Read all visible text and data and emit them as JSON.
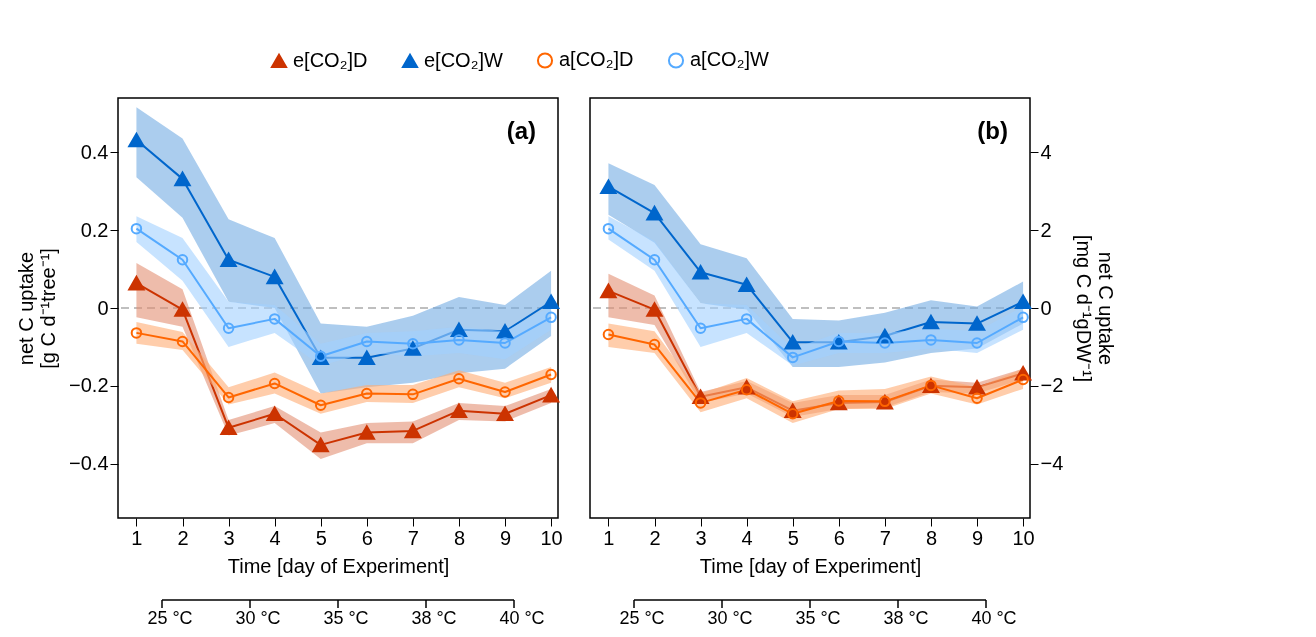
{
  "chart_data": [
    {
      "type": "line",
      "xlabel": "Time [day of Experiment]",
      "ylabel": "net C uptake\n[g C d⁻¹tree⁻¹]",
      "annotations": [
        "(a)",
        "25 °C",
        "30 °C",
        "35 °C",
        "38 °C",
        "40 °C"
      ],
      "legend": "top",
      "grid": false,
      "line_style": "solid",
      "x": [
        1,
        2,
        3,
        4,
        5,
        6,
        7,
        8,
        9,
        10
      ],
      "xlim": [
        0.6,
        10.15
      ],
      "xticks": [
        1,
        2,
        3,
        4,
        5,
        6,
        7,
        8,
        9,
        10
      ],
      "ylim": [
        -0.54,
        0.54
      ],
      "yticks": [
        {
          "value": -0.4,
          "label": "−0.4"
        },
        {
          "value": -0.2,
          "label": "−0.2"
        },
        0,
        0.2,
        0.4
      ],
      "ref_lines": [
        {
          "axis": "y",
          "value": 0,
          "color": "#aaaaaa",
          "line_style": "dashed"
        }
      ],
      "series": [
        {
          "name": "e[CO₂]D",
          "color": "#cc3300",
          "marker": "triangle",
          "values": [
            0.064,
            -0.004,
            -0.308,
            -0.272,
            -0.352,
            -0.32,
            -0.316,
            -0.264,
            -0.272,
            -0.224
          ],
          "lower": [
            -0.024,
            -0.048,
            -0.328,
            -0.296,
            -0.388,
            -0.348,
            -0.348,
            -0.288,
            -0.292,
            -0.244
          ],
          "upper": [
            0.116,
            0.048,
            -0.288,
            -0.252,
            -0.32,
            -0.296,
            -0.292,
            -0.244,
            -0.252,
            -0.208
          ]
        },
        {
          "name": "e[CO₂]W",
          "color": "#0066cc",
          "marker": "triangle",
          "values": [
            0.432,
            0.332,
            0.124,
            0.08,
            -0.128,
            -0.128,
            -0.104,
            -0.056,
            -0.06,
            0.016
          ],
          "lower": [
            0.336,
            0.232,
            0.016,
            0.0,
            -0.22,
            -0.204,
            -0.192,
            -0.168,
            -0.156,
            -0.072
          ],
          "upper": [
            0.516,
            0.436,
            0.228,
            0.18,
            -0.04,
            -0.048,
            -0.02,
            0.028,
            0.008,
            0.096
          ]
        },
        {
          "name": "a[CO₂]D",
          "color": "#ff6600",
          "marker": "circle",
          "values": [
            -0.064,
            -0.086,
            -0.23,
            -0.194,
            -0.25,
            -0.22,
            -0.222,
            -0.182,
            -0.216,
            -0.171
          ],
          "lower": [
            -0.092,
            -0.108,
            -0.248,
            -0.22,
            -0.272,
            -0.242,
            -0.244,
            -0.204,
            -0.232,
            -0.192
          ],
          "upper": [
            -0.036,
            -0.062,
            -0.204,
            -0.166,
            -0.22,
            -0.198,
            -0.198,
            -0.16,
            -0.192,
            -0.152
          ]
        },
        {
          "name": "a[CO₂]W",
          "color": "#55aaff",
          "marker": "circle",
          "values": [
            0.204,
            0.124,
            -0.052,
            -0.028,
            -0.124,
            -0.086,
            -0.092,
            -0.082,
            -0.09,
            -0.024
          ],
          "lower": [
            0.17,
            0.07,
            -0.1,
            -0.064,
            -0.148,
            -0.116,
            -0.124,
            -0.116,
            -0.132,
            -0.056
          ],
          "upper": [
            0.236,
            0.18,
            0.016,
            0.008,
            -0.092,
            -0.064,
            -0.06,
            -0.048,
            -0.06,
            0.004
          ]
        }
      ]
    },
    {
      "type": "line",
      "xlabel": "Time [day of Experiment]",
      "y2label": "net C uptake\n[mg C d⁻¹gDW⁻¹]",
      "annotations": [
        "(b)",
        "25 °C",
        "30 °C",
        "35 °C",
        "38 °C",
        "40 °C"
      ],
      "legend": "top",
      "grid": false,
      "line_style": "solid",
      "x": [
        1,
        2,
        3,
        4,
        5,
        6,
        7,
        8,
        9,
        10
      ],
      "xlim": [
        0.6,
        10.15
      ],
      "xticks": [
        1,
        2,
        3,
        4,
        5,
        6,
        7,
        8,
        9,
        10
      ],
      "y2lim": [
        -5.4,
        5.4
      ],
      "y2ticks": [
        {
          "value": -4,
          "label": "−4"
        },
        {
          "value": -2,
          "label": "−2"
        },
        0,
        2,
        4
      ],
      "ref_lines": [
        {
          "axis": "y2",
          "value": 0,
          "color": "#aaaaaa",
          "line_style": "dashed"
        }
      ],
      "series": [
        {
          "name": "e[CO₂]D",
          "color": "#cc3300",
          "marker": "triangle",
          "axis": "y2",
          "values": [
            0.44,
            -0.04,
            -2.28,
            -2.04,
            -2.64,
            -2.44,
            -2.42,
            -2.0,
            -2.04,
            -1.68
          ],
          "lower": [
            -0.24,
            -0.44,
            -2.44,
            -2.2,
            -2.8,
            -2.6,
            -2.56,
            -2.16,
            -2.2,
            -1.84
          ],
          "upper": [
            0.88,
            0.32,
            -2.16,
            -1.88,
            -2.44,
            -2.24,
            -2.24,
            -1.84,
            -1.92,
            -1.56
          ]
        },
        {
          "name": "e[CO₂]W",
          "color": "#0066cc",
          "marker": "triangle",
          "axis": "y2",
          "values": [
            3.12,
            2.44,
            0.92,
            0.6,
            -0.88,
            -0.88,
            -0.72,
            -0.36,
            -0.4,
            0.16
          ],
          "lower": [
            2.4,
            1.68,
            0.12,
            -0.04,
            -1.52,
            -1.52,
            -1.4,
            -1.16,
            -1.04,
            -0.4
          ],
          "upper": [
            3.72,
            3.16,
            1.64,
            1.28,
            -0.28,
            -0.32,
            -0.12,
            0.2,
            0.04,
            0.68
          ]
        },
        {
          "name": "a[CO₂]D",
          "color": "#ff6600",
          "marker": "circle",
          "axis": "y2",
          "values": [
            -0.68,
            -0.94,
            -2.44,
            -2.1,
            -2.72,
            -2.39,
            -2.4,
            -1.99,
            -2.32,
            -1.84
          ],
          "lower": [
            -1.0,
            -1.16,
            -2.68,
            -2.32,
            -2.96,
            -2.6,
            -2.6,
            -2.2,
            -2.48,
            -2.08
          ],
          "upper": [
            -0.4,
            -0.6,
            -2.2,
            -1.8,
            -2.4,
            -2.12,
            -2.08,
            -1.76,
            -2.04,
            -1.56
          ]
        },
        {
          "name": "a[CO₂]W",
          "color": "#55aaff",
          "marker": "circle",
          "axis": "y2",
          "values": [
            2.04,
            1.24,
            -0.52,
            -0.28,
            -1.27,
            -0.86,
            -0.9,
            -0.82,
            -0.9,
            -0.24
          ],
          "lower": [
            1.76,
            0.96,
            -1.0,
            -0.64,
            -1.48,
            -1.16,
            -1.16,
            -1.04,
            -1.16,
            -0.56
          ],
          "upper": [
            2.36,
            1.72,
            0.12,
            0.08,
            -1.04,
            -0.64,
            -0.64,
            -0.52,
            -0.6,
            0.04
          ]
        }
      ]
    }
  ]
}
